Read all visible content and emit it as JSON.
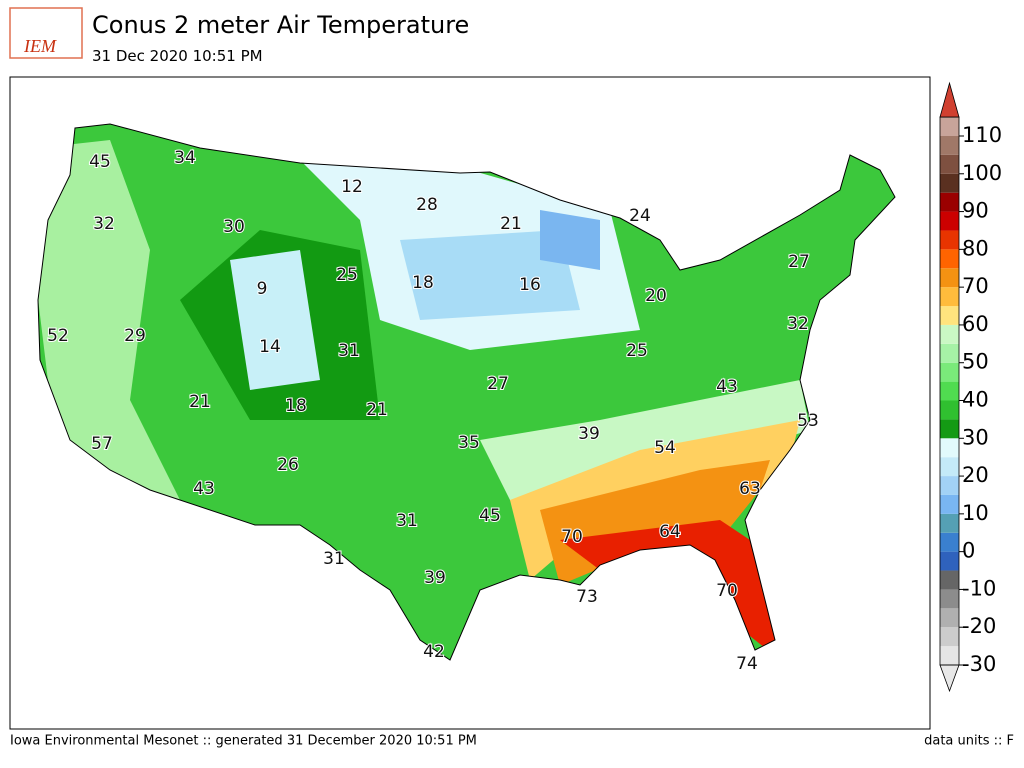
{
  "header": {
    "logo": "IEM",
    "title": "Conus 2 meter Air Temperature",
    "subtitle": "31 Dec 2020 10:51 PM"
  },
  "footer": {
    "left": "Iowa Environmental Mesonet :: generated 31 December 2020 10:51 PM",
    "right": "data units :: F"
  },
  "colorbar": {
    "ticks": [
      -30,
      -20,
      -10,
      0,
      10,
      20,
      30,
      40,
      50,
      60,
      70,
      80,
      90,
      100,
      110
    ],
    "colors": [
      "#e5e5e5",
      "#cccccc",
      "#b0b0b0",
      "#8c8c8c",
      "#666666",
      "#2f62bd",
      "#3a80cf",
      "#55a0b4",
      "#79b6f2",
      "#a2d2f6",
      "#c4eaf8",
      "#e2fafc",
      "#149a14",
      "#30c030",
      "#50dc50",
      "#7aea7a",
      "#a6f2a6",
      "#caf8c4",
      "#ffe47e",
      "#ffbc3c",
      "#f49212",
      "#ff6400",
      "#e83400",
      "#cc0000",
      "#9a0000",
      "#5a3020",
      "#7e5040",
      "#a07868",
      "#c8a49a"
    ],
    "low_color": "#e8e8e8",
    "high_color": "#d04030"
  },
  "map": {
    "labels": [
      45,
      34,
      12,
      28,
      21,
      24,
      32,
      30,
      25,
      18,
      16,
      20,
      27,
      9,
      52,
      29,
      14,
      31,
      32,
      25,
      27,
      43,
      21,
      18,
      21,
      53,
      39,
      54,
      57,
      35,
      26,
      63,
      43,
      31,
      45,
      70,
      64,
      31,
      39,
      73,
      70,
      42,
      74
    ]
  }
}
